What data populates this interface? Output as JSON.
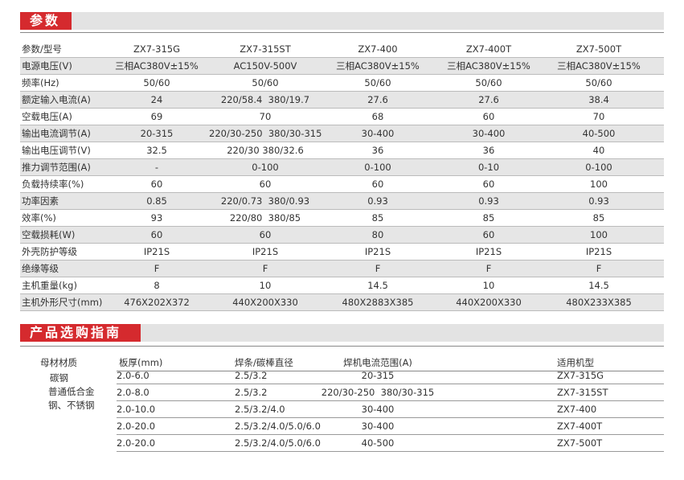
{
  "parameters": {
    "title": "参数",
    "header": [
      "参数/型号",
      "ZX7-315G",
      "ZX7-315ST",
      "ZX7-400",
      "ZX7-400T",
      "ZX7-500T"
    ],
    "rows": [
      [
        "电源电压(V)",
        "三相AC380V±15%",
        "AC150V-500V",
        "三相AC380V±15%",
        "三相AC380V±15%",
        "三相AC380V±15%"
      ],
      [
        "频率(Hz)",
        "50/60",
        "50/60",
        "50/60",
        "50/60",
        "50/60"
      ],
      [
        "额定输入电流(A)",
        "24",
        "220/58.4  380/19.7",
        "27.6",
        "27.6",
        "38.4"
      ],
      [
        "空载电压(A)",
        "69",
        "70",
        "68",
        "60",
        "70"
      ],
      [
        "输出电流调节(A)",
        "20-315",
        "220/30-250  380/30-315",
        "30-400",
        "30-400",
        "40-500"
      ],
      [
        "输出电压调节(V)",
        "32.5",
        "220/30 380/32.6",
        "36",
        "36",
        "40"
      ],
      [
        "推力调节范围(A)",
        "-",
        "0-100",
        "0-100",
        "0-10",
        "0-100"
      ],
      [
        "负载持续率(%)",
        "60",
        "60",
        "60",
        "60",
        "100"
      ],
      [
        "功率因素",
        "0.85",
        "220/0.73  380/0.93",
        "0.93",
        "0.93",
        "0.93"
      ],
      [
        "效率(%)",
        "93",
        "220/80  380/85",
        "85",
        "85",
        "85"
      ],
      [
        "空载损耗(W)",
        "60",
        "60",
        "80",
        "60",
        "100"
      ],
      [
        "外壳防护等级",
        "IP21S",
        "IP21S",
        "IP21S",
        "IP21S",
        "IP21S"
      ],
      [
        "绝缘等级",
        "F",
        "F",
        "F",
        "F",
        "F"
      ],
      [
        "主机重量(kg)",
        "8",
        "10",
        "14.5",
        "10",
        "14.5"
      ],
      [
        "主机外形尺寸(mm)",
        "476X202X372",
        "440X200X330",
        "480X2883X385",
        "440X200X330",
        "480X233X385"
      ]
    ]
  },
  "guide": {
    "title": "产品选购指南",
    "header": [
      "母材材质",
      "板厚(mm)",
      "焊条/碳棒直径",
      "焊机电流范围(A)",
      "适用机型"
    ],
    "material": [
      "碳钢",
      "普通低合金",
      "钢、不锈钢"
    ],
    "rows": [
      [
        "2.0-6.0",
        "2.5/3.2",
        "20-315",
        "ZX7-315G"
      ],
      [
        "2.0-8.0",
        "2.5/3.2",
        "220/30-250  380/30-315",
        "ZX7-315ST"
      ],
      [
        "2.0-10.0",
        "2.5/3.2/4.0",
        "30-400",
        "ZX7-400"
      ],
      [
        "2.0-20.0",
        "2.5/3.2/4.0/5.0/6.0",
        "30-400",
        "ZX7-400T"
      ],
      [
        "2.0-20.0",
        "2.5/3.2/4.0/5.0/6.0",
        "40-500",
        "ZX7-500T"
      ]
    ]
  }
}
